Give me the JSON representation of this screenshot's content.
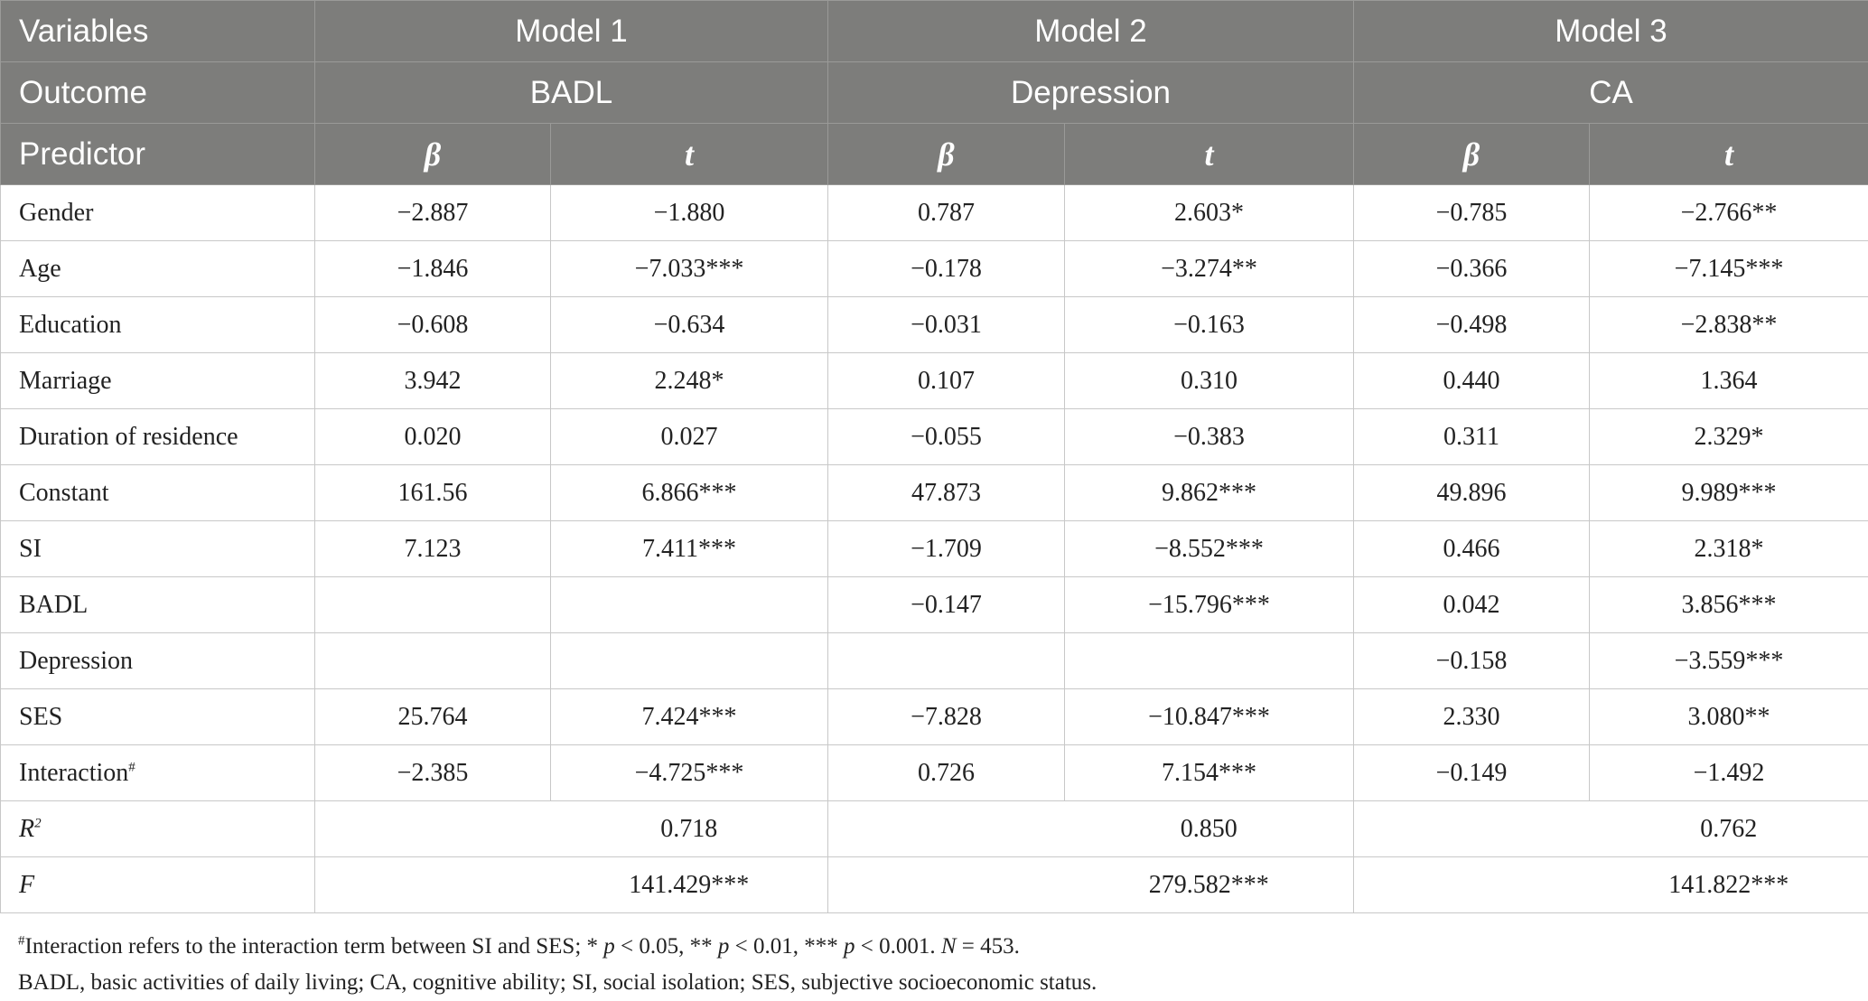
{
  "header": {
    "variables": "Variables",
    "outcome": "Outcome",
    "predictor": "Predictor",
    "models": [
      "Model 1",
      "Model 2",
      "Model 3"
    ],
    "outcomes": [
      "BADL",
      "Depression",
      "CA"
    ],
    "beta": "β",
    "t": "t"
  },
  "rows": [
    {
      "label": "Gender",
      "values": [
        "−2.887",
        "−1.880",
        "0.787",
        "2.603*",
        "−0.785",
        "−2.766**"
      ]
    },
    {
      "label": "Age",
      "values": [
        "−1.846",
        "−7.033***",
        "−0.178",
        "−3.274**",
        "−0.366",
        "−7.145***"
      ]
    },
    {
      "label": "Education",
      "values": [
        "−0.608",
        "−0.634",
        "−0.031",
        "−0.163",
        "−0.498",
        "−2.838**"
      ]
    },
    {
      "label": "Marriage",
      "values": [
        "3.942",
        "2.248*",
        "0.107",
        "0.310",
        "0.440",
        "1.364"
      ]
    },
    {
      "label": "Duration of residence",
      "values": [
        "0.020",
        "0.027",
        "−0.055",
        "−0.383",
        "0.311",
        "2.329*"
      ]
    },
    {
      "label": "Constant",
      "values": [
        "161.56",
        "6.866***",
        "47.873",
        "9.862***",
        "49.896",
        "9.989***"
      ]
    },
    {
      "label": "SI",
      "values": [
        "7.123",
        "7.411***",
        "−1.709",
        "−8.552***",
        "0.466",
        "2.318*"
      ]
    },
    {
      "label": "BADL",
      "values": [
        "",
        "",
        "−0.147",
        "−15.796***",
        "0.042",
        "3.856***"
      ]
    },
    {
      "label": "Depression",
      "values": [
        "",
        "",
        "",
        "",
        "−0.158",
        "−3.559***"
      ]
    },
    {
      "label": "SES",
      "values": [
        "25.764",
        "7.424***",
        "−7.828",
        "−10.847***",
        "2.330",
        "3.080**"
      ]
    },
    {
      "label": "Interaction",
      "sup": "#",
      "values": [
        "−2.385",
        "−4.725***",
        "0.726",
        "7.154***",
        "−0.149",
        "−1.492"
      ]
    }
  ],
  "summary": [
    {
      "label": "R",
      "sup": "2",
      "values": [
        "0.718",
        "0.850",
        "0.762"
      ]
    },
    {
      "label": "F",
      "values": [
        "141.429***",
        "279.582***",
        "141.822***"
      ]
    }
  ],
  "notes": {
    "note1_sup": "#",
    "note1_a": "Interaction refers to the interaction term between SI and SES; * ",
    "p": "p",
    "lt05": " < 0.05, ** ",
    "lt01": " < 0.01, *** ",
    "lt001": " < 0.001. ",
    "n_label": "N",
    "n_value": " = 453.",
    "note2": "BADL, basic activities of daily living; CA, cognitive ability; SI, social isolation; SES, subjective socioeconomic status."
  }
}
